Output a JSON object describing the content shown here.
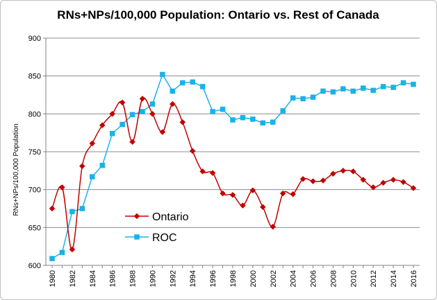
{
  "chart_data": {
    "type": "line",
    "title": "RNs+NPs/100,000 Population: Ontario vs. Rest of Canada",
    "xlabel": "",
    "ylabel": "RNs+NPs/100,000 Population",
    "ylim": [
      600,
      900
    ],
    "yticks": [
      600,
      650,
      700,
      750,
      800,
      850,
      900
    ],
    "x": [
      1980,
      1981,
      1982,
      1983,
      1984,
      1985,
      1986,
      1987,
      1988,
      1989,
      1990,
      1991,
      1992,
      1993,
      1994,
      1995,
      1996,
      1997,
      1998,
      1999,
      2000,
      2001,
      2002,
      2003,
      2004,
      2005,
      2006,
      2007,
      2008,
      2009,
      2010,
      2011,
      2012,
      2013,
      2014,
      2015,
      2016
    ],
    "xtick_labels": [
      "1980",
      "1982",
      "1984",
      "1986",
      "1988",
      "1990",
      "1992",
      "1994",
      "1996",
      "1998",
      "2000",
      "2002",
      "2004",
      "2006",
      "2008",
      "2010",
      "2012",
      "2014",
      "2016"
    ],
    "grid": "horizontal",
    "legend_position": "center-left",
    "series": [
      {
        "name": "Ontario",
        "color": "#c00000",
        "marker": "diamond",
        "smooth": true,
        "values": [
          675,
          703,
          621,
          731,
          761,
          785,
          800,
          815,
          763,
          820,
          800,
          776,
          813,
          789,
          751,
          724,
          722,
          695,
          693,
          679,
          699,
          677,
          651,
          695,
          694,
          714,
          711,
          712,
          721,
          725,
          724,
          713,
          703,
          709,
          713,
          710,
          702
        ]
      },
      {
        "name": "ROC",
        "color": "#1ab2e8",
        "marker": "square",
        "smooth": false,
        "values": [
          609,
          617,
          671,
          675,
          717,
          732,
          774,
          786,
          799,
          803,
          813,
          852,
          830,
          841,
          842,
          836,
          803,
          806,
          792,
          795,
          793,
          788,
          789,
          804,
          821,
          820,
          822,
          830,
          829,
          833,
          830,
          834,
          831,
          836,
          835,
          841,
          839
        ]
      }
    ]
  }
}
